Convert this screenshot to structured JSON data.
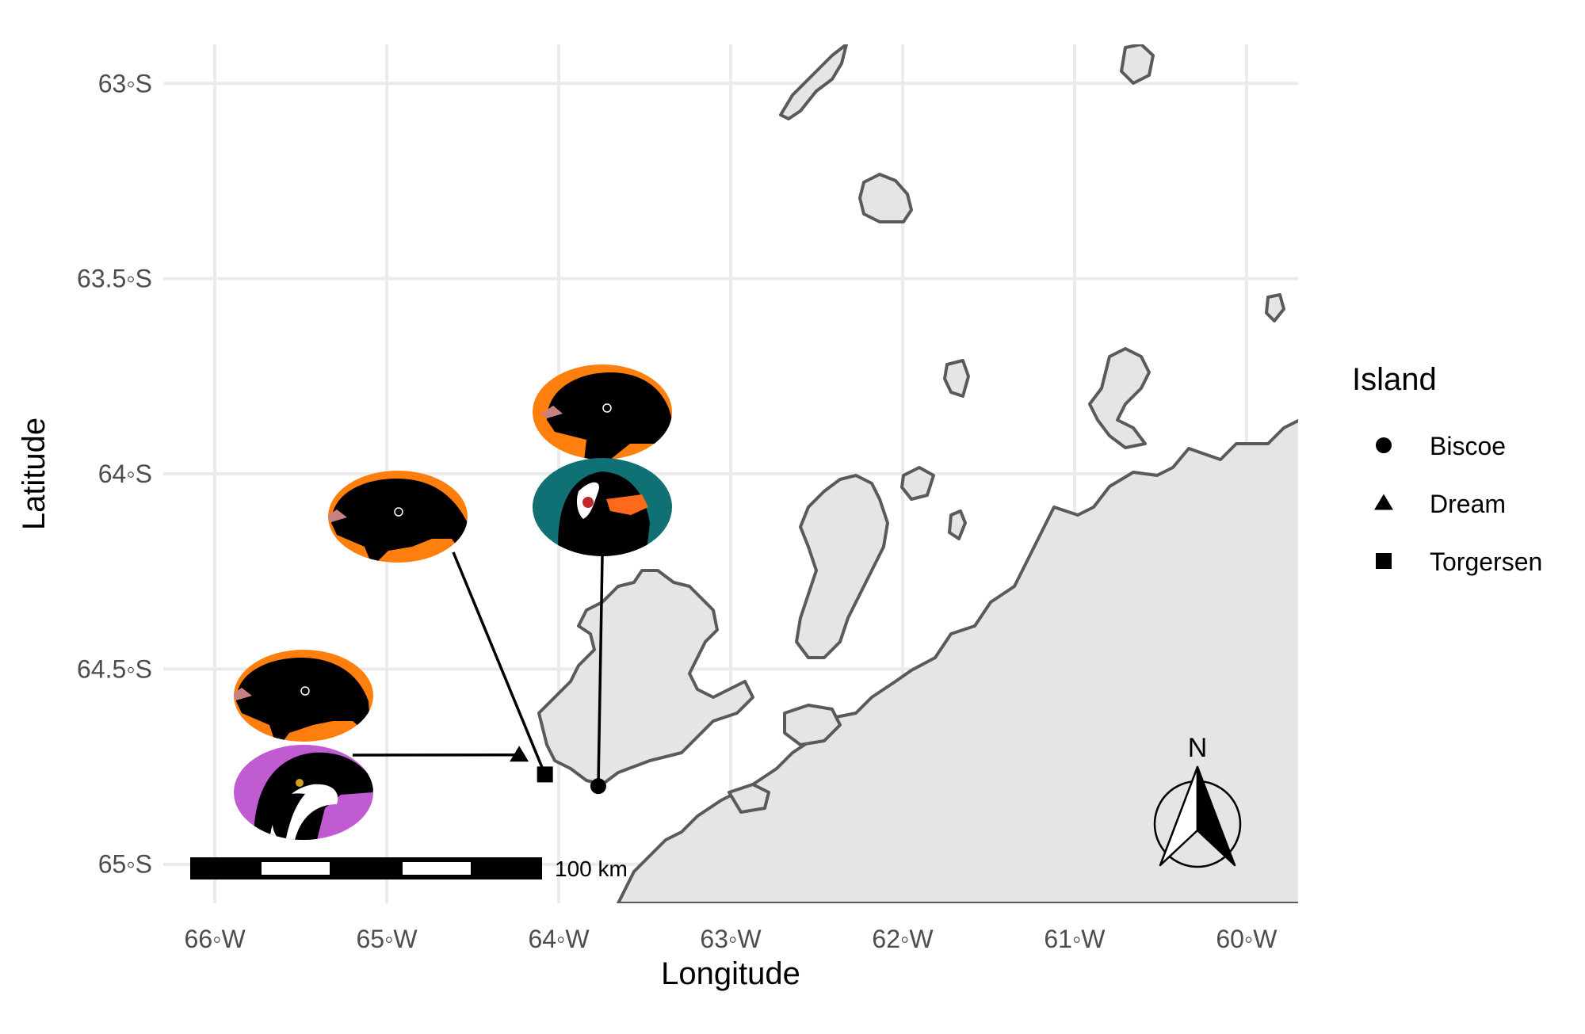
{
  "axes": {
    "xlabel": "Longitude",
    "ylabel": "Latitude",
    "x_ticks": [
      {
        "value": -66,
        "label": "66◦W"
      },
      {
        "value": -65,
        "label": "65◦W"
      },
      {
        "value": -64,
        "label": "64◦W"
      },
      {
        "value": -63,
        "label": "63◦W"
      },
      {
        "value": -62,
        "label": "62◦W"
      },
      {
        "value": -61,
        "label": "61◦W"
      },
      {
        "value": -60,
        "label": "60◦W"
      }
    ],
    "y_ticks": [
      {
        "value": -63,
        "label": "63◦S"
      },
      {
        "value": -63.5,
        "label": "63.5◦S"
      },
      {
        "value": -64,
        "label": "64◦S"
      },
      {
        "value": -64.5,
        "label": "64.5◦S"
      },
      {
        "value": -65,
        "label": "65◦S"
      }
    ],
    "xlim": [
      -66.3,
      -59.7
    ],
    "ylim": [
      -65.1,
      -62.9
    ],
    "grid": true
  },
  "legend": {
    "title": "Island",
    "placement": "right",
    "items": [
      {
        "label": "Biscoe",
        "shape": "circle"
      },
      {
        "label": "Dream",
        "shape": "triangle"
      },
      {
        "label": "Torgersen",
        "shape": "square"
      }
    ]
  },
  "islands": [
    {
      "name": "Biscoe",
      "shape": "circle",
      "lon": -63.77,
      "lat": -64.8
    },
    {
      "name": "Dream",
      "shape": "triangle",
      "lon": -64.23,
      "lat": -64.72
    },
    {
      "name": "Torgersen",
      "shape": "square",
      "lon": -64.08,
      "lat": -64.77
    }
  ],
  "penguin_icons": [
    {
      "species_icon": "adelie-penguin-icon",
      "bg": "#ff7f0e",
      "island": "Biscoe"
    },
    {
      "species_icon": "gentoo-penguin-icon",
      "bg": "#0f7173",
      "island": "Biscoe"
    },
    {
      "species_icon": "adelie-penguin-icon",
      "bg": "#ff7f0e",
      "island": "Torgersen"
    },
    {
      "species_icon": "adelie-penguin-icon",
      "bg": "#ff7f0e",
      "island": "Dream"
    },
    {
      "species_icon": "chinstrap-penguin-icon",
      "bg": "#c05bd1",
      "island": "Dream"
    }
  ],
  "scale_bar": {
    "label": "100 km"
  },
  "north_arrow": {
    "label": "N"
  },
  "colors": {
    "land": "#e5e5e5",
    "coast": "#5a5a5a",
    "grid": "#ebebeb",
    "adelie": "#ff7f0e",
    "gentoo": "#0f7173",
    "chinstrap": "#c05bd1"
  }
}
